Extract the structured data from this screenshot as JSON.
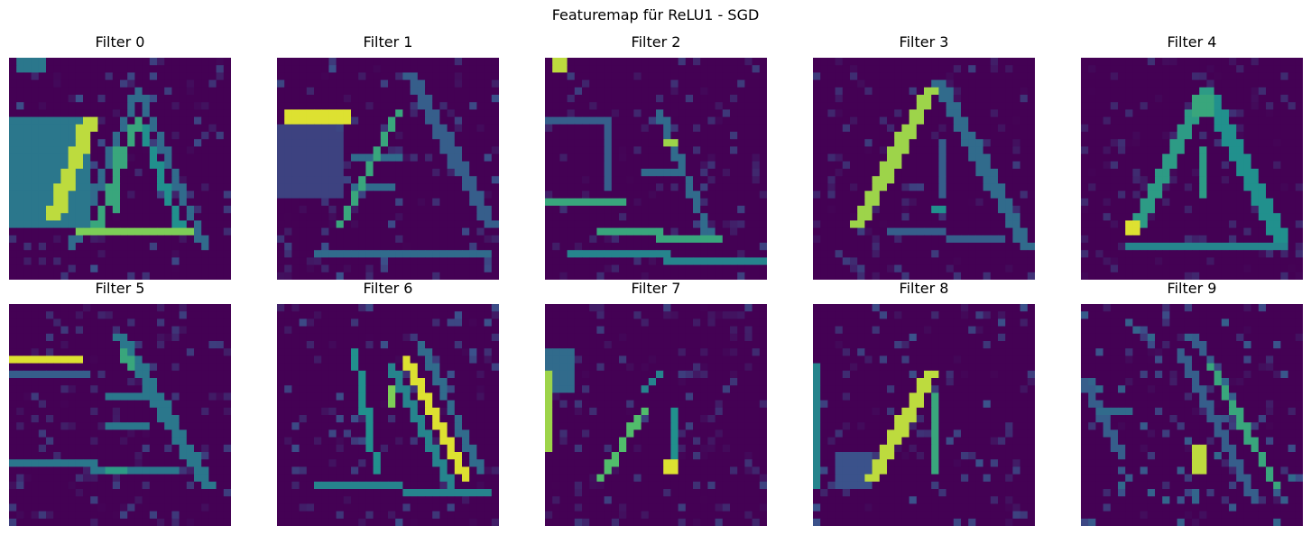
{
  "figure": {
    "title": "Featuremap für ReLU1 - SGD"
  },
  "colormap": {
    "name": "viridis",
    "stops": [
      "#440154",
      "#3b528b",
      "#21908d",
      "#5dc863",
      "#fde725"
    ]
  },
  "panels": [
    {
      "title": "Filter 0",
      "pattern": "filter-0"
    },
    {
      "title": "Filter 1",
      "pattern": "filter-1"
    },
    {
      "title": "Filter 2",
      "pattern": "filter-2"
    },
    {
      "title": "Filter 3",
      "pattern": "filter-3"
    },
    {
      "title": "Filter 4",
      "pattern": "filter-4"
    },
    {
      "title": "Filter 5",
      "pattern": "filter-5"
    },
    {
      "title": "Filter 6",
      "pattern": "filter-6"
    },
    {
      "title": "Filter 7",
      "pattern": "filter-7"
    },
    {
      "title": "Filter 8",
      "pattern": "filter-8"
    },
    {
      "title": "Filter 9",
      "pattern": "filter-9"
    }
  ]
}
